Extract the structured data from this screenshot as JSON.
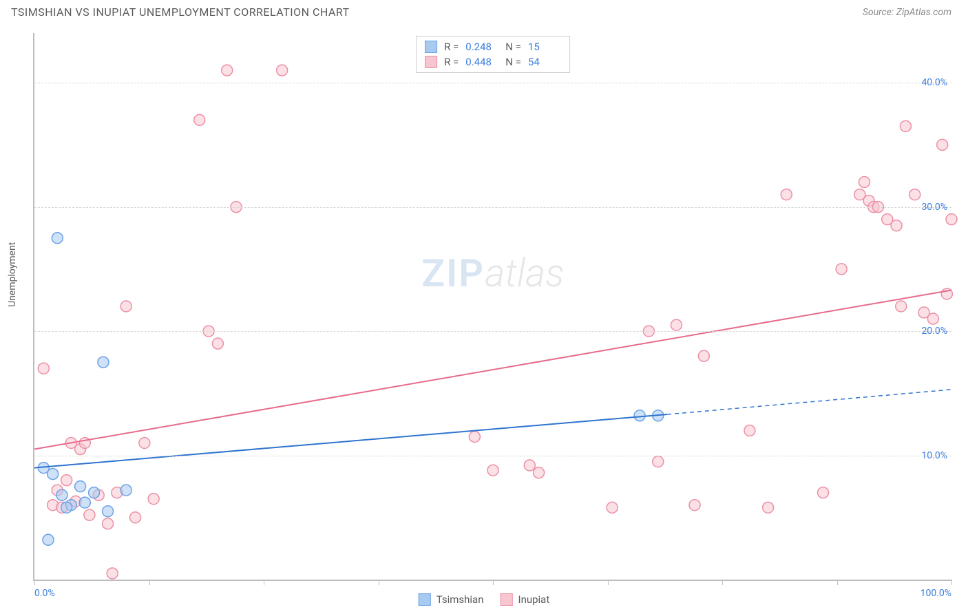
{
  "header": {
    "title": "TSIMSHIAN VS INUPIAT UNEMPLOYMENT CORRELATION CHART",
    "source": "Source: ZipAtlas.com"
  },
  "axes": {
    "y_label": "Unemployment",
    "xlim": [
      0,
      100
    ],
    "ylim": [
      0,
      44
    ],
    "y_ticks": [
      10.0,
      20.0,
      30.0,
      40.0
    ],
    "y_tick_labels": [
      "10.0%",
      "20.0%",
      "30.0%",
      "40.0%"
    ],
    "x_ticks": [
      0,
      12.5,
      25,
      37.5,
      50,
      62.5,
      75,
      87.5,
      100
    ],
    "x_tick_labels_shown": {
      "0": "0.0%",
      "100": "100.0%"
    },
    "grid_color": "#d7d7d7",
    "axis_color": "#bdbdbd"
  },
  "series": {
    "tsimshian": {
      "label": "Tsimshian",
      "color_fill": "#a8c9f0",
      "color_stroke": "#6aa2e6",
      "line_color": "#2f74d0",
      "marker_radius": 8,
      "points": [
        [
          2.5,
          27.5
        ],
        [
          1,
          9
        ],
        [
          2,
          8.5
        ],
        [
          3,
          6.8
        ],
        [
          4,
          6
        ],
        [
          5,
          7.5
        ],
        [
          6.5,
          7
        ],
        [
          8,
          5.5
        ],
        [
          7.5,
          17.5
        ],
        [
          1.5,
          3.2
        ],
        [
          3.5,
          5.8
        ],
        [
          10,
          7.2
        ],
        [
          5.5,
          6.2
        ],
        [
          66,
          13.2
        ],
        [
          68,
          13.2
        ]
      ],
      "trend": {
        "x1": 0,
        "y1": 9.0,
        "x2": 69,
        "y2": 13.3,
        "ext_x2": 100,
        "ext_y2": 15.3,
        "width": 2
      },
      "R": "0.248",
      "N": "15"
    },
    "inupiat": {
      "label": "Inupiat",
      "color_fill": "#f7c6d0",
      "color_stroke": "#ec8fa6",
      "line_color": "#e76b8a",
      "marker_radius": 8,
      "points": [
        [
          1,
          17
        ],
        [
          2,
          6
        ],
        [
          2.5,
          7.2
        ],
        [
          3,
          5.8
        ],
        [
          3.5,
          8
        ],
        [
          4,
          11
        ],
        [
          4.5,
          6.3
        ],
        [
          5,
          10.5
        ],
        [
          5.5,
          11
        ],
        [
          6,
          5.2
        ],
        [
          7,
          6.8
        ],
        [
          8,
          4.5
        ],
        [
          9,
          7
        ],
        [
          10,
          22
        ],
        [
          11,
          5
        ],
        [
          12,
          11
        ],
        [
          13,
          6.5
        ],
        [
          18,
          37
        ],
        [
          19,
          20
        ],
        [
          20,
          19
        ],
        [
          21,
          41
        ],
        [
          22,
          30
        ],
        [
          27,
          41
        ],
        [
          48,
          11.5
        ],
        [
          50,
          8.8
        ],
        [
          54,
          9.2
        ],
        [
          55,
          8.6
        ],
        [
          63,
          5.8
        ],
        [
          67,
          20
        ],
        [
          68,
          9.5
        ],
        [
          70,
          20.5
        ],
        [
          72,
          6
        ],
        [
          73,
          18
        ],
        [
          78,
          12
        ],
        [
          80,
          5.8
        ],
        [
          82,
          31
        ],
        [
          86,
          7
        ],
        [
          88,
          25
        ],
        [
          90,
          31
        ],
        [
          90.5,
          32
        ],
        [
          91,
          30.5
        ],
        [
          91.5,
          30
        ],
        [
          92,
          30
        ],
        [
          93,
          29
        ],
        [
          94,
          28.5
        ],
        [
          94.5,
          22
        ],
        [
          95,
          36.5
        ],
        [
          96,
          31
        ],
        [
          97,
          21.5
        ],
        [
          98,
          21
        ],
        [
          99,
          35
        ],
        [
          99.5,
          23
        ],
        [
          100,
          29
        ],
        [
          8.5,
          0.5
        ]
      ],
      "trend": {
        "x1": 0,
        "y1": 10.5,
        "x2": 100,
        "y2": 23.3,
        "width": 2
      },
      "R": "0.448",
      "N": "54"
    }
  },
  "watermark": {
    "part1": "ZIP",
    "part2": "atlas"
  },
  "stats_box": {
    "R_label": "R =",
    "N_label": "N ="
  },
  "legend": {
    "s1": "Tsimshian",
    "s2": "Inupiat"
  }
}
